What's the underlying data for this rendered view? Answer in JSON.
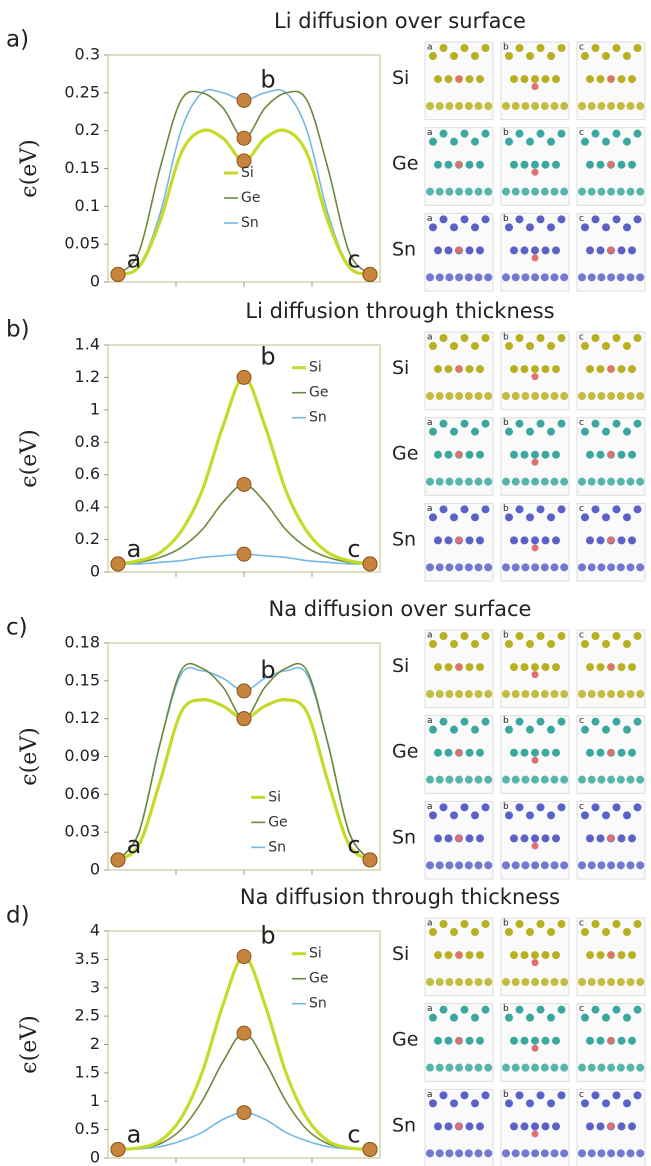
{
  "chart_data": [
    {
      "type": "line",
      "panel_label": "a)",
      "title": "Li diffusion over surface",
      "ylabel": "ϵ(eV)",
      "categories": [
        "a",
        null,
        null,
        null,
        null,
        null,
        "b",
        null,
        null,
        null,
        null,
        null,
        "c"
      ],
      "ylim": [
        0,
        0.3
      ],
      "yticks": [
        0,
        0.05,
        0.1,
        0.15,
        0.2,
        0.25,
        0.3
      ],
      "grid": false,
      "legend": "center",
      "series": [
        {
          "name": "Si",
          "color": "#c6da2a",
          "values": [
            0.01,
            0.02,
            0.08,
            0.17,
            0.2,
            0.19,
            0.16,
            0.19,
            0.2,
            0.17,
            0.08,
            0.02,
            0.01
          ]
        },
        {
          "name": "Ge",
          "color": "#6b8a3c",
          "values": [
            0.01,
            0.04,
            0.15,
            0.24,
            0.25,
            0.23,
            0.19,
            0.23,
            0.25,
            0.24,
            0.15,
            0.04,
            0.01
          ]
        },
        {
          "name": "Sn",
          "color": "#72b8e6",
          "values": [
            0.01,
            0.02,
            0.09,
            0.2,
            0.25,
            0.25,
            0.24,
            0.25,
            0.25,
            0.2,
            0.09,
            0.02,
            0.01
          ]
        }
      ],
      "structure_rows": [
        "Si",
        "Ge",
        "Sn"
      ],
      "structure_columns": [
        "a",
        "b",
        "c"
      ]
    },
    {
      "type": "line",
      "panel_label": "b)",
      "title": "Li diffusion through thickness",
      "ylabel": "ϵ(eV)",
      "categories": [
        "a",
        null,
        null,
        null,
        null,
        null,
        "b",
        null,
        null,
        null,
        null,
        null,
        "c"
      ],
      "ylim": [
        0,
        1.4
      ],
      "yticks": [
        0,
        0.2,
        0.4,
        0.6,
        0.8,
        1,
        1.2,
        1.4
      ],
      "grid": false,
      "legend": "upper-right",
      "series": [
        {
          "name": "Si",
          "color": "#c6da2a",
          "values": [
            0.05,
            0.07,
            0.12,
            0.25,
            0.5,
            0.9,
            1.2,
            0.9,
            0.5,
            0.25,
            0.12,
            0.07,
            0.05
          ]
        },
        {
          "name": "Ge",
          "color": "#6b8a3c",
          "values": [
            0.05,
            0.06,
            0.09,
            0.15,
            0.26,
            0.43,
            0.54,
            0.43,
            0.26,
            0.15,
            0.09,
            0.06,
            0.05
          ]
        },
        {
          "name": "Sn",
          "color": "#72b8e6",
          "values": [
            0.05,
            0.05,
            0.06,
            0.07,
            0.09,
            0.1,
            0.11,
            0.1,
            0.09,
            0.07,
            0.06,
            0.05,
            0.05
          ]
        }
      ],
      "structure_rows": [
        "Si",
        "Ge",
        "Sn"
      ],
      "structure_columns": [
        "a",
        "b",
        "c"
      ]
    },
    {
      "type": "line",
      "panel_label": "c)",
      "title": "Na diffusion over surface",
      "ylabel": "ϵ(eV)",
      "categories": [
        "a",
        null,
        null,
        null,
        null,
        null,
        "b",
        null,
        null,
        null,
        null,
        null,
        "c"
      ],
      "ylim": [
        0,
        0.18
      ],
      "yticks": [
        0,
        0.03,
        0.06,
        0.09,
        0.12,
        0.15,
        0.18
      ],
      "grid": false,
      "legend": "lower-center",
      "series": [
        {
          "name": "Si",
          "color": "#c6da2a",
          "values": [
            0.008,
            0.02,
            0.07,
            0.125,
            0.135,
            0.13,
            0.12,
            0.13,
            0.135,
            0.125,
            0.07,
            0.02,
            0.008
          ]
        },
        {
          "name": "Ge",
          "color": "#6b8a3c",
          "values": [
            0.008,
            0.03,
            0.1,
            0.158,
            0.16,
            0.145,
            0.12,
            0.145,
            0.16,
            0.158,
            0.1,
            0.03,
            0.008
          ]
        },
        {
          "name": "Sn",
          "color": "#72b8e6",
          "values": [
            0.008,
            0.03,
            0.1,
            0.155,
            0.158,
            0.152,
            0.142,
            0.152,
            0.158,
            0.155,
            0.1,
            0.03,
            0.008
          ]
        }
      ],
      "structure_rows": [
        "Si",
        "Ge",
        "Sn"
      ],
      "structure_columns": [
        "a",
        "b",
        "c"
      ]
    },
    {
      "type": "line",
      "panel_label": "d)",
      "title": "Na diffusion through thickness",
      "ylabel": "ϵ(eV)",
      "categories": [
        "a",
        null,
        null,
        null,
        null,
        null,
        "b",
        null,
        null,
        null,
        null,
        null,
        "c"
      ],
      "ylim": [
        0,
        4
      ],
      "yticks": [
        0,
        0.5,
        1,
        1.5,
        2,
        2.5,
        3,
        3.5,
        4
      ],
      "grid": false,
      "legend": "upper-right",
      "series": [
        {
          "name": "Si",
          "color": "#c6da2a",
          "values": [
            0.15,
            0.18,
            0.3,
            0.7,
            1.5,
            2.7,
            3.55,
            2.7,
            1.5,
            0.7,
            0.3,
            0.18,
            0.15
          ]
        },
        {
          "name": "Ge",
          "color": "#6b8a3c",
          "values": [
            0.15,
            0.17,
            0.25,
            0.5,
            1.0,
            1.7,
            2.2,
            1.7,
            1.0,
            0.5,
            0.25,
            0.17,
            0.15
          ]
        },
        {
          "name": "Sn",
          "color": "#72b8e6",
          "values": [
            0.15,
            0.16,
            0.2,
            0.3,
            0.45,
            0.68,
            0.8,
            0.68,
            0.45,
            0.3,
            0.2,
            0.16,
            0.15
          ]
        }
      ],
      "structure_rows": [
        "Si",
        "Ge",
        "Sn"
      ],
      "structure_columns": [
        "a",
        "b",
        "c"
      ]
    }
  ]
}
